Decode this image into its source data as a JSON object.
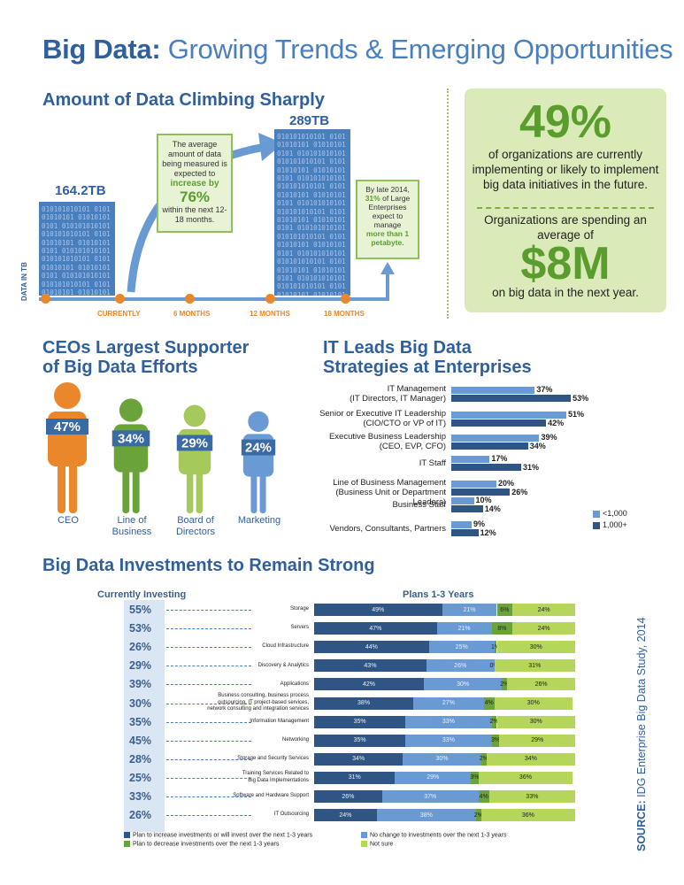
{
  "header": {
    "title_strong": "Big Data:",
    "title_rest": " Growing Trends & Emerging Opportunities"
  },
  "section1": {
    "heading": "Amount of Data Climbing Sharply",
    "y_axis_label": "DATA IN TB",
    "current_value": "164.2TB",
    "future_value": "289TB",
    "callout_line1": "The average amount of data being measured is expected to",
    "callout_emph": "increase by",
    "callout_pct": "76%",
    "callout_line2": "within the next 12-18 months.",
    "late_prefix": "By late 2014,",
    "late_pct": "31%",
    "late_mid": "of Large Enterprises expect to manage",
    "late_emph": "more than 1 petabyte.",
    "timeline": [
      "CURRENTLY",
      "6 MONTHS",
      "12 MONTHS",
      "18 MONTHS"
    ],
    "binary_text": "010101010101"
  },
  "panel": {
    "stat1": "49%",
    "stat1_text": "of organizations are currently implementing or likely to implement big data initiatives in the future.",
    "stat2_intro": "Organizations are spending an average of",
    "stat2": "$8M",
    "stat2_text": "on big data in the next year."
  },
  "ceos": {
    "heading_line1": "CEOs Largest Supporter",
    "heading_line2": "of Big Data Efforts",
    "figures": [
      {
        "pct": "47%",
        "label": "CEO",
        "value": 47,
        "color": "#e9872a"
      },
      {
        "pct": "34%",
        "label": "Line of Business",
        "value": 34,
        "color": "#6aa33a"
      },
      {
        "pct": "29%",
        "label": "Board of Directors",
        "value": 29,
        "color": "#a5c95a"
      },
      {
        "pct": "24%",
        "label": "Marketing",
        "value": 24,
        "color": "#6a9ad3"
      }
    ]
  },
  "it_leads": {
    "heading_line1": "IT Leads Big Data",
    "heading_line2": "Strategies at Enterprises",
    "legend": [
      "<1,000",
      "1,000+"
    ],
    "colors": {
      "small": "#6a9ad3",
      "large": "#2f5585"
    }
  },
  "investments": {
    "heading": "Big Data Investments to Remain Strong",
    "current_heading": "Currently Investing",
    "plans_heading": "Plans 1-3 Years",
    "source_strong": "SOURCE:",
    "source_rest": " IDG Enterprise Big Data Study, 2014",
    "legend": [
      "Plan to increase investments or will invest over the next 1-3 years",
      "Plan to decrease investments over the next 1-3 years",
      "No change to investments over the next 1-3 years",
      "Not sure"
    ],
    "colors": {
      "increase": "#2f5585",
      "nochange": "#6a9ad3",
      "decrease": "#6aa33a",
      "notsure": "#b5d65a"
    }
  },
  "chart_data": [
    {
      "type": "bar",
      "title": "IT Leads Big Data Strategies at Enterprises",
      "categories": [
        "IT Management (IT Directors, IT Manager)",
        "Senior or Executive IT Leadership (CIO/CTO or VP of IT)",
        "Executive Business Leadership (CEO, EVP, CFO)",
        "IT Staff",
        "Line of Business Management (Business Unit or Department Leaders)",
        "Business Staff",
        "Vendors, Consultants, Partners"
      ],
      "category_lines": [
        [
          "IT Management",
          "(IT Directors, IT Manager)"
        ],
        [
          "Senior or Executive IT Leadership",
          "(CIO/CTO or VP of IT)"
        ],
        [
          "Executive Business Leadership",
          "(CEO, EVP, CFO)"
        ],
        [
          "IT Staff"
        ],
        [
          "Line of Business Management",
          "(Business Unit or Department Leaders)"
        ],
        [
          "Business Staff"
        ],
        [
          "Vendors, Consultants, Partners"
        ]
      ],
      "series": [
        {
          "name": "<1,000",
          "values": [
            37,
            51,
            39,
            17,
            20,
            10,
            9
          ]
        },
        {
          "name": "1,000+",
          "values": [
            53,
            42,
            34,
            31,
            26,
            14,
            12
          ]
        }
      ]
    },
    {
      "type": "bar",
      "title": "Big Data Investments to Remain Strong",
      "categories": [
        "Storage",
        "Servers",
        "Cloud Infrastructure",
        "Discovery & Analytics",
        "Applications",
        "Business consulting, business process outsourcing, IT project-based services, network consulting and integration services",
        "Information Management",
        "Networking",
        "Storage and Security Services",
        "Training Services Related to Big Data Implementations",
        "Software and Hardware Support",
        "IT Outsourcing"
      ],
      "category_lines": [
        [
          "Storage"
        ],
        [
          "Servers"
        ],
        [
          "Cloud Infrastructure"
        ],
        [
          "Discovery & Analytics"
        ],
        [
          "Applications"
        ],
        [
          "Business consulting, business process",
          "outsourcing, IT project-based services,",
          "network consulting and integration services"
        ],
        [
          "Information Management"
        ],
        [
          "Networking"
        ],
        [
          "Storage and Security Services"
        ],
        [
          "Training Services Related to",
          "Big Data Implementations"
        ],
        [
          "Software and Hardware Support"
        ],
        [
          "IT Outsourcing"
        ]
      ],
      "currently_investing": [
        55,
        53,
        26,
        29,
        39,
        30,
        35,
        45,
        28,
        25,
        33,
        26
      ],
      "series": [
        {
          "name": "Plan to increase investments or will invest over the next 1-3 years",
          "values": [
            49,
            47,
            44,
            43,
            42,
            38,
            35,
            35,
            34,
            31,
            26,
            24
          ]
        },
        {
          "name": "No change to investments over the next 1-3 years",
          "values": [
            21,
            21,
            25,
            26,
            30,
            27,
            33,
            33,
            30,
            29,
            37,
            38
          ]
        },
        {
          "name": "Plan to decrease investments over the next 1-3 years",
          "values": [
            6,
            8,
            1,
            0,
            2,
            4,
            2,
            3,
            2,
            3,
            4,
            2
          ]
        },
        {
          "name": "Not sure",
          "values": [
            24,
            24,
            30,
            31,
            26,
            30,
            30,
            29,
            34,
            36,
            33,
            36
          ]
        }
      ],
      "stacked": true,
      "xlim": [
        0,
        100
      ]
    }
  ]
}
